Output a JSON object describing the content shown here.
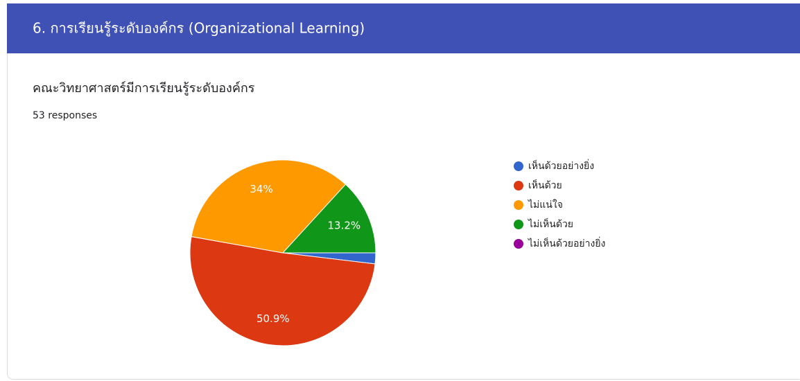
{
  "header": {
    "title": "6. การเรียนรู้ระดับองค์กร (Organizational Learning)"
  },
  "chart_data": {
    "type": "pie",
    "title": "คณะวิทยาศาสตร์มีการเรียนรู้ระดับองค์กร",
    "subtitle": "53 responses",
    "categories": [
      "เห็นด้วยอย่างยิ่ง",
      "เห็นด้วย",
      "ไม่แน่ใจ",
      "ไม่เห็นด้วย",
      "ไม่เห็นด้วยอย่างยิ่ง"
    ],
    "values": [
      1.9,
      50.9,
      34,
      13.2,
      0
    ],
    "value_labels": [
      null,
      "50.9%",
      "34%",
      "13.2%",
      null
    ],
    "colors": [
      "#3366cc",
      "#dc3912",
      "#ff9900",
      "#109618",
      "#990099"
    ],
    "legend": "right"
  }
}
